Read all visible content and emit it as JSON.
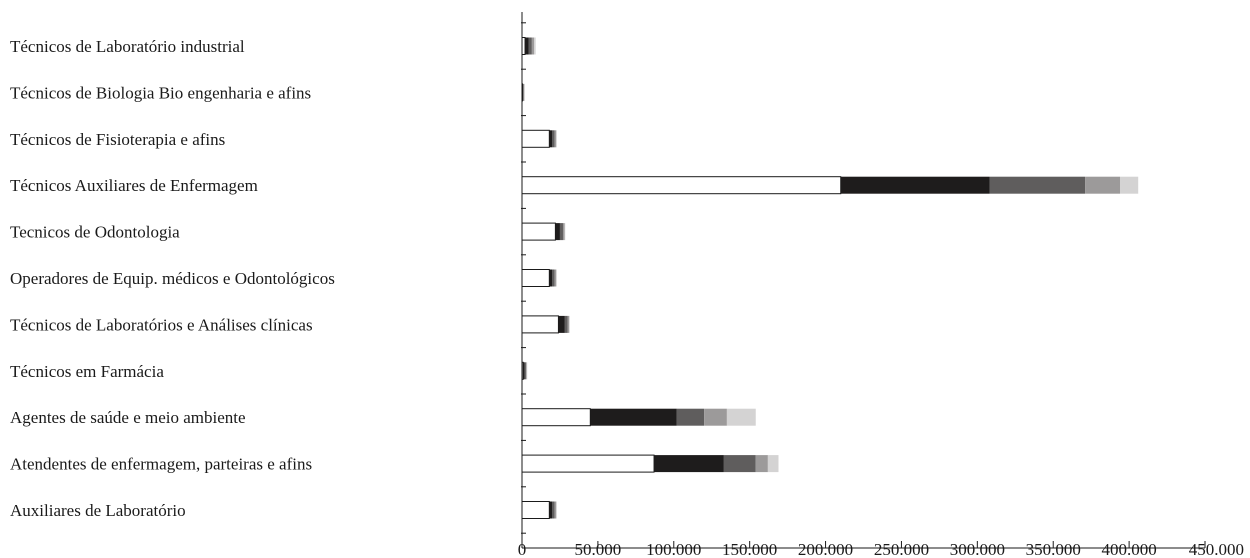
{
  "chart_data": {
    "type": "bar",
    "orientation": "horizontal",
    "stacked": true,
    "categories": [
      "Técnicos de Laboratório industrial",
      "Técnicos de Biologia Bio engenharia e afins",
      "Técnicos de Fisioterapia e afins",
      "Técnicos Auxiliares de Enfermagem",
      "Tecnicos de Odontologia",
      "Operadores de Equip. médicos e Odontológicos",
      "Técnicos de Laboratórios e Análises clínicas",
      "Técnicos em Farmácia",
      "Agentes de saúde e meio ambiente",
      "Atendentes de enfermagem, parteiras e afins",
      "Auxiliares de Laboratório"
    ],
    "series": [
      {
        "color": "#ffffff",
        "values": [
          2000,
          300,
          18000,
          210000,
          22000,
          18000,
          24000,
          800,
          45000,
          87000,
          18000
        ]
      },
      {
        "color": "#1e1c1c",
        "values": [
          2500,
          400,
          2000,
          98000,
          3000,
          2000,
          4000,
          1000,
          57000,
          46000,
          2000
        ]
      },
      {
        "color": "#5f5d5d",
        "values": [
          2000,
          500,
          1500,
          63000,
          2000,
          1500,
          2000,
          800,
          18000,
          21000,
          1500
        ]
      },
      {
        "color": "#9c9a9a",
        "values": [
          1500,
          300,
          1000,
          23000,
          1000,
          1000,
          1000,
          500,
          15000,
          8000,
          1000
        ]
      },
      {
        "color": "#d4d3d3",
        "values": [
          1000,
          200,
          500,
          12000,
          500,
          500,
          500,
          300,
          19000,
          7000,
          500
        ]
      }
    ],
    "xlim": [
      0,
      450000
    ],
    "xticks": [
      0,
      50000,
      100000,
      150000,
      200000,
      250000,
      300000,
      350000,
      400000,
      450000
    ],
    "xtick_labels": [
      "0",
      "50.000",
      "100.000",
      "150.000",
      "200.000",
      "250.000",
      "300.000",
      "350.000",
      "400.000",
      "450.000"
    ],
    "title": "",
    "xlabel": "",
    "ylabel": "",
    "legend": "none",
    "grid": false
  }
}
